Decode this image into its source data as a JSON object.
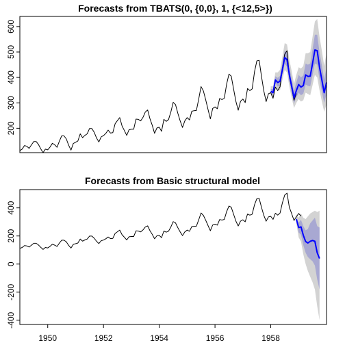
{
  "chart_data": [
    {
      "type": "line",
      "title": "Forecasts from TBATS(0, {0,0}, 1, {<12,5>})",
      "xlabel": "",
      "ylabel": "",
      "xlim": [
        1949.0,
        1960.0
      ],
      "ylim": [
        104,
        640
      ],
      "yticks": [
        200,
        300,
        400,
        500,
        600
      ],
      "xticks": [],
      "grid": false,
      "series": [
        {
          "role": "observed",
          "color": "#000000",
          "start": 1949.0,
          "step": 0.0833333,
          "values": [
            112,
            118,
            132,
            129,
            121,
            135,
            148,
            148,
            136,
            119,
            104,
            118,
            115,
            126,
            141,
            135,
            125,
            149,
            170,
            170,
            158,
            133,
            114,
            140,
            145,
            150,
            178,
            163,
            172,
            178,
            199,
            199,
            184,
            162,
            146,
            166,
            171,
            180,
            193,
            181,
            183,
            218,
            230,
            242,
            209,
            191,
            172,
            194,
            196,
            196,
            236,
            235,
            229,
            243,
            264,
            272,
            237,
            211,
            180,
            201,
            204,
            188,
            235,
            227,
            234,
            264,
            302,
            293,
            259,
            229,
            203,
            229,
            242,
            233,
            267,
            269,
            270,
            315,
            364,
            347,
            312,
            274,
            237,
            278,
            284,
            277,
            317,
            313,
            318,
            374,
            413,
            405,
            355,
            306,
            271,
            306,
            315,
            301,
            356,
            348,
            355,
            422,
            465,
            467,
            404,
            347,
            305,
            336,
            340,
            318,
            362,
            348,
            363,
            435,
            491,
            505,
            404,
            359,
            310,
            337
          ]
        },
        {
          "role": "forecast",
          "color": "#0000ff",
          "start": 1958.0,
          "step": 0.0833333,
          "values": [
            345,
            340,
            390,
            380,
            385,
            430,
            478,
            470,
            410,
            365,
            320,
            348,
            372,
            362,
            368,
            410,
            404,
            405,
            455,
            508,
            505,
            440,
            390,
            340,
            380
          ]
        }
      ],
      "bands": [
        {
          "level": 95,
          "color": "#d3d3d3",
          "lower": [
            330,
            320,
            365,
            350,
            350,
            390,
            430,
            420,
            365,
            320,
            280,
            300,
            315,
            305,
            310,
            340,
            335,
            330,
            370,
            410,
            400,
            350,
            305,
            265,
            295
          ],
          "upper": [
            365,
            365,
            420,
            420,
            430,
            480,
            535,
            530,
            470,
            425,
            375,
            410,
            440,
            435,
            445,
            495,
            495,
            500,
            560,
            620,
            630,
            560,
            505,
            445,
            495
          ]
        },
        {
          "level": 80,
          "color": "#a8a8d2",
          "lower": [
            337,
            330,
            377,
            364,
            367,
            410,
            453,
            443,
            386,
            341,
            298,
            322,
            340,
            330,
            336,
            372,
            367,
            365,
            409,
            455,
            450,
            392,
            345,
            300,
            335
          ],
          "upper": [
            355,
            353,
            405,
            398,
            406,
            455,
            505,
            500,
            440,
            395,
            348,
            380,
            410,
            400,
            408,
            455,
            450,
            455,
            510,
            568,
            568,
            498,
            448,
            392,
            440
          ]
        }
      ]
    },
    {
      "type": "line",
      "title": "Forecasts from Basic structural model",
      "xlabel": "",
      "ylabel": "",
      "xlim": [
        1949.0,
        1960.0
      ],
      "ylim": [
        -430,
        530
      ],
      "yticks": [
        -400,
        -200,
        0,
        200,
        400
      ],
      "xticks": [
        1950,
        1952,
        1954,
        1956,
        1958
      ],
      "grid": false,
      "series": [
        {
          "role": "observed",
          "color": "#000000",
          "start": 1949.0,
          "step": 0.0833333,
          "values": [
            112,
            118,
            132,
            129,
            121,
            135,
            148,
            148,
            136,
            119,
            104,
            118,
            115,
            126,
            141,
            135,
            125,
            149,
            170,
            170,
            158,
            133,
            114,
            140,
            145,
            150,
            178,
            163,
            172,
            178,
            199,
            199,
            184,
            162,
            146,
            166,
            171,
            180,
            193,
            181,
            183,
            218,
            230,
            242,
            209,
            191,
            172,
            194,
            196,
            196,
            236,
            235,
            229,
            243,
            264,
            272,
            237,
            211,
            180,
            201,
            204,
            188,
            235,
            227,
            234,
            264,
            302,
            293,
            259,
            229,
            203,
            229,
            242,
            233,
            267,
            269,
            270,
            315,
            364,
            347,
            312,
            274,
            237,
            278,
            284,
            277,
            317,
            313,
            318,
            374,
            413,
            405,
            355,
            306,
            271,
            306,
            315,
            301,
            356,
            348,
            355,
            422,
            465,
            467,
            404,
            347,
            305,
            336,
            340,
            318,
            362,
            348,
            363,
            435,
            491,
            505,
            404,
            359,
            310,
            337,
            360,
            342
          ]
        },
        {
          "role": "forecast",
          "color": "#0000ff",
          "start": 1958.9167,
          "step": 0.0833333,
          "values": [
            320,
            260,
            265,
            205,
            160,
            150,
            162,
            168,
            162,
            80,
            40
          ]
        }
      ],
      "bands": [
        {
          "level": 95,
          "color": "#d3d3d3",
          "lower": [
            290,
            190,
            160,
            70,
            0,
            -50,
            -90,
            -130,
            -180,
            -300,
            -400
          ],
          "upper": [
            350,
            330,
            360,
            330,
            320,
            340,
            360,
            370,
            380,
            370,
            380
          ]
        },
        {
          "level": 80,
          "color": "#a8a8d2",
          "lower": [
            305,
            225,
            210,
            135,
            80,
            50,
            35,
            20,
            -10,
            -110,
            -180
          ],
          "upper": [
            335,
            295,
            315,
            270,
            240,
            250,
            290,
            310,
            330,
            270,
            260
          ]
        }
      ]
    }
  ]
}
